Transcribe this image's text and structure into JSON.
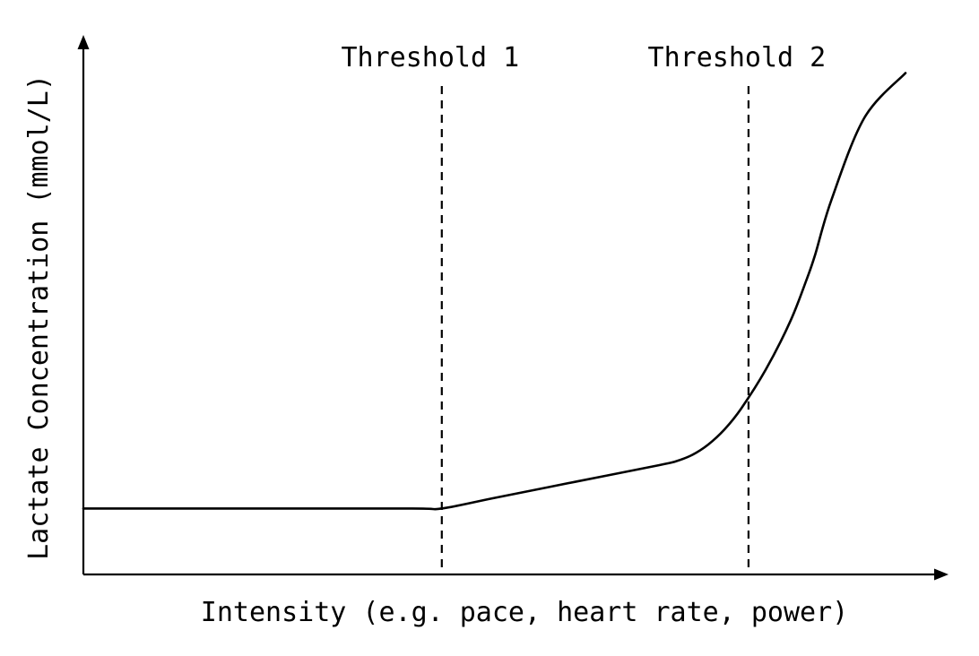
{
  "chart_data": {
    "type": "line",
    "title": "",
    "xlabel": "Intensity (e.g. pace, heart rate, power)",
    "ylabel": "Lactate Concentration (mmol/L)",
    "xlim": [
      0,
      100
    ],
    "ylim": [
      0,
      100
    ],
    "ticks": "none",
    "grid": false,
    "legend": "none",
    "series": [
      {
        "x": [
          0,
          20,
          40,
          43.6,
          50,
          60,
          70,
          72,
          74,
          76,
          78,
          80,
          83,
          86,
          88,
          89,
          91,
          95,
          100
        ],
        "y": [
          12.5,
          12.5,
          12.5,
          12.5,
          14.5,
          17.6,
          20.7,
          21.4,
          22.6,
          24.6,
          27.5,
          31.4,
          38.8,
          48,
          56,
          60.5,
          71,
          86.5,
          95
        ]
      }
    ],
    "thresholds": [
      {
        "label": "Threshold 1",
        "x": 43.6
      },
      {
        "label": "Threshold 2",
        "x": 80.9
      }
    ],
    "colors": {
      "line": "#000000",
      "background": "#ffffff"
    }
  }
}
